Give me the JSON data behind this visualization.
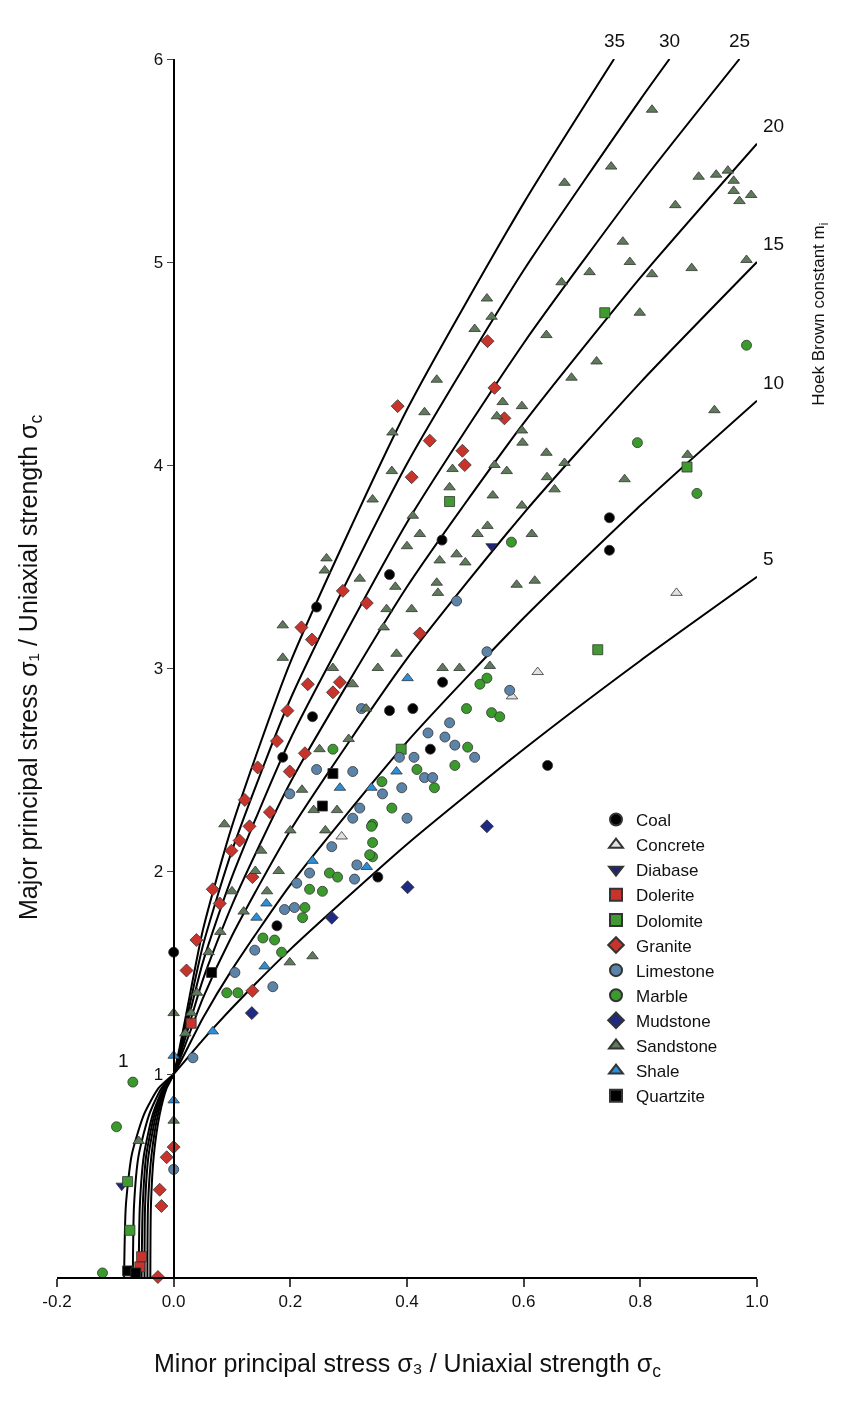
{
  "chart_data": {
    "type": "scatter",
    "xlabel": "Minor principal stress σ₃ / Uniaxial strength σ$_{c}$",
    "ylabel": "Major principal stress σ₁ / Uniaxial strength σ$_{c}$",
    "xlim": [
      -0.2,
      1.0
    ],
    "xticks": [
      -0.2,
      {
        "value": 0,
        "label": "0.0"
      },
      0.2,
      0.4,
      0.6,
      0.8,
      {
        "value": 1.0,
        "label": "1.0"
      }
    ],
    "ylim": [
      0,
      6
    ],
    "yticks": [
      1,
      2,
      3,
      4,
      5,
      6
    ],
    "legend": "bottom right",
    "annotations": [
      {
        "text": "5",
        "x": 1.0,
        "y": 3.449
      },
      {
        "text": "10",
        "x": 1.0,
        "y": 4.317
      },
      {
        "text": "15",
        "x": 1.0,
        "y": 5.0
      },
      {
        "text": "20",
        "x": 1.0,
        "y": 5.583
      },
      {
        "text": "25",
        "x": 0.97,
        "y": 6.0
      },
      {
        "text": "30",
        "x": 0.85,
        "y": 6.0
      },
      {
        "text": "35",
        "x": 0.755,
        "y": 6.0
      },
      "1",
      "Hoek Brown constant m$_{i}$"
    ],
    "series": [
      {
        "type": "line",
        "color": "#000000",
        "marker": "none",
        "x": [
          -0.085,
          -0.082,
          -0.072,
          -0.051,
          -0.026,
          0,
          0.05,
          0.1,
          0.2,
          0.4,
          0.6,
          0.8,
          1.0
        ],
        "values": [
          0,
          0.35,
          0.6,
          0.8,
          0.93,
          1,
          1.168,
          1.325,
          1.614,
          2.132,
          2.6,
          3.036,
          3.449
        ]
      },
      {
        "type": "line",
        "color": "#000000",
        "marker": "none",
        "x": [
          -0.07,
          -0.068,
          -0.06,
          -0.042,
          -0.021,
          0,
          0.05,
          0.1,
          0.2,
          0.4,
          0.6,
          0.8,
          1.0
        ],
        "values": [
          0,
          0.35,
          0.6,
          0.8,
          0.93,
          1,
          1.275,
          1.514,
          1.932,
          2.636,
          3.246,
          3.8,
          4.317
        ]
      },
      {
        "type": "line",
        "color": "#000000",
        "marker": "none",
        "x": [
          -0.06,
          -0.058,
          -0.051,
          -0.036,
          -0.018,
          0,
          0.05,
          0.1,
          0.2,
          0.4,
          0.6,
          0.8,
          1.0
        ],
        "values": [
          0,
          0.35,
          0.6,
          0.8,
          0.93,
          1,
          1.373,
          1.681,
          2.2,
          3.046,
          3.762,
          4.406,
          5.0
        ]
      },
      {
        "type": "line",
        "color": "#000000",
        "marker": "none",
        "x": [
          -0.055,
          -0.053,
          -0.047,
          -0.033,
          -0.017,
          0,
          0.05,
          0.1,
          0.2,
          0.4,
          0.6,
          0.8,
          1.0
        ],
        "values": [
          0,
          0.35,
          0.6,
          0.8,
          0.93,
          1,
          1.464,
          1.832,
          2.436,
          3.4,
          4.206,
          4.923,
          5.583
        ]
      },
      {
        "type": "line",
        "color": "#000000",
        "marker": "none",
        "x": [
          -0.05,
          -0.049,
          -0.043,
          -0.03,
          -0.015,
          0,
          0.05,
          0.1,
          0.2,
          0.4,
          0.6,
          0.8,
          0.97
        ],
        "values": [
          0,
          0.35,
          0.6,
          0.8,
          0.93,
          1,
          1.55,
          1.971,
          2.649,
          3.717,
          4.6,
          5.383,
          6.0
        ]
      },
      {
        "type": "line",
        "color": "#000000",
        "marker": "none",
        "x": [
          -0.045,
          -0.044,
          -0.038,
          -0.027,
          -0.014,
          0,
          0.05,
          0.1,
          0.2,
          0.4,
          0.6,
          0.8,
          0.85
        ],
        "values": [
          0,
          0.35,
          0.6,
          0.8,
          0.93,
          1,
          1.631,
          2.1,
          2.846,
          4.006,
          4.959,
          5.8,
          6.0
        ]
      },
      {
        "type": "line",
        "color": "#000000",
        "marker": "none",
        "x": [
          -0.04,
          -0.039,
          -0.034,
          -0.024,
          -0.012,
          0,
          0.05,
          0.1,
          0.2,
          0.4,
          0.6,
          0.755
        ],
        "values": [
          0,
          0.35,
          0.6,
          0.8,
          0.93,
          1,
          1.708,
          2.221,
          3.028,
          4.273,
          5.29,
          6.0
        ]
      },
      {
        "name": "Coal",
        "color": "#000000",
        "marker": "circle",
        "x": [
          0.641,
          0.35,
          0.747,
          0.747,
          0.46,
          0.37,
          0.461,
          0.245,
          0.187,
          0.177,
          0.0,
          0.238,
          0.41,
          0.44,
          0.37
        ],
        "values": [
          2.52,
          1.97,
          3.74,
          3.58,
          3.63,
          3.46,
          2.93,
          3.3,
          2.56,
          1.73,
          1.6,
          2.76,
          2.8,
          2.6,
          2.79
        ]
      },
      {
        "name": "Concrete",
        "color": "#e0e0e0",
        "marker": "triangle",
        "x": [
          0.862,
          0.624,
          0.288,
          0.58
        ],
        "values": [
          3.37,
          2.98,
          2.17,
          2.86
        ]
      },
      {
        "name": "Diabase",
        "color": "#1f237a",
        "marker": "triangle-down",
        "x": [
          0.545,
          -0.089
        ],
        "values": [
          3.6,
          0.45
        ]
      },
      {
        "name": "Dolerite",
        "color": "#c8342c",
        "marker": "square",
        "x": [
          -0.058,
          -0.055,
          0.03
        ],
        "values": [
          0.05,
          0.1,
          1.25
        ]
      },
      {
        "name": "Dolomite",
        "color": "#3f9a2f",
        "marker": "square",
        "x": [
          0.727,
          0.739,
          0.88,
          0.473,
          -0.079,
          -0.075,
          0.39
        ],
        "values": [
          3.09,
          4.75,
          3.99,
          3.82,
          0.47,
          0.23,
          2.6
        ]
      },
      {
        "name": "Granite",
        "color": "#c8342c",
        "marker": "diamond",
        "x": [
          0.384,
          0.538,
          0.55,
          0.439,
          0.495,
          0.499,
          0.408,
          0.567,
          0.422,
          0.29,
          0.331,
          0.219,
          0.237,
          0.23,
          0.273,
          0.285,
          0.195,
          0.177,
          0.225,
          0.144,
          0.199,
          0.122,
          0.165,
          0.13,
          0.099,
          0.113,
          0.135,
          0.067,
          0.079,
          0.039,
          0.022,
          0.135,
          0.0,
          -0.024,
          -0.021,
          -0.027,
          -0.012
        ],
        "values": [
          4.29,
          4.61,
          4.38,
          4.12,
          4.07,
          4.0,
          3.94,
          4.23,
          3.17,
          3.38,
          3.32,
          3.2,
          3.14,
          2.92,
          2.88,
          2.93,
          2.79,
          2.64,
          2.58,
          2.51,
          2.49,
          2.35,
          2.29,
          2.22,
          2.1,
          2.15,
          1.97,
          1.91,
          1.84,
          1.66,
          1.51,
          1.41,
          0.64,
          0.43,
          0.35,
          0.0,
          0.59
        ]
      },
      {
        "name": "Limestone",
        "color": "#5b84a8",
        "marker": "circle",
        "x": [
          0.473,
          0.436,
          0.465,
          0.482,
          0.516,
          0.387,
          0.412,
          0.43,
          0.444,
          0.391,
          0.358,
          0.4,
          0.576,
          0.245,
          0.307,
          0.322,
          0.199,
          0.319,
          0.307,
          0.271,
          0.233,
          0.211,
          0.314,
          0.31,
          0.207,
          0.19,
          0.139,
          0.105,
          0.17,
          0.485,
          0.537,
          0.0,
          0.033
        ],
        "values": [
          2.73,
          2.68,
          2.66,
          2.62,
          2.56,
          2.56,
          2.56,
          2.46,
          2.46,
          2.41,
          2.38,
          2.26,
          2.89,
          2.5,
          2.49,
          2.8,
          2.38,
          2.31,
          2.26,
          2.12,
          1.99,
          1.94,
          2.03,
          1.96,
          1.82,
          1.81,
          1.61,
          1.5,
          1.43,
          3.33,
          3.08,
          0.53,
          1.08
        ]
      },
      {
        "name": "Marble",
        "color": "#3a9a2c",
        "marker": "circle",
        "x": [
          0.982,
          0.795,
          0.897,
          0.579,
          0.537,
          0.525,
          0.502,
          0.545,
          0.559,
          0.504,
          0.482,
          0.417,
          0.447,
          0.374,
          0.341,
          0.341,
          0.341,
          0.273,
          0.357,
          0.339,
          0.336,
          0.267,
          0.281,
          0.233,
          0.255,
          0.225,
          0.221,
          0.153,
          0.173,
          0.185,
          0.091,
          0.11,
          -0.07,
          -0.098,
          -0.122
        ],
        "values": [
          4.59,
          4.11,
          3.86,
          3.62,
          2.95,
          2.92,
          2.8,
          2.78,
          2.76,
          2.61,
          2.52,
          2.5,
          2.41,
          2.31,
          2.23,
          2.14,
          2.07,
          2.6,
          2.44,
          2.22,
          2.08,
          1.99,
          1.97,
          1.91,
          1.9,
          1.82,
          1.77,
          1.67,
          1.66,
          1.6,
          1.4,
          1.4,
          0.96,
          0.74,
          0.02
        ]
      },
      {
        "name": "Mudstone",
        "color": "#1f2a80",
        "marker": "diamond",
        "x": [
          0.537,
          0.401,
          0.271,
          0.134
        ],
        "values": [
          2.22,
          1.92,
          1.77,
          1.3
        ]
      },
      {
        "name": "Sandstone",
        "color": "#5e7a5a",
        "marker": "triangle",
        "x": [
          0.982,
          0.782,
          0.713,
          0.82,
          0.888,
          0.665,
          0.537,
          0.545,
          0.516,
          0.639,
          0.799,
          0.451,
          0.725,
          0.682,
          0.43,
          0.375,
          0.564,
          0.597,
          0.554,
          0.597,
          0.598,
          0.927,
          0.374,
          0.478,
          0.55,
          0.571,
          0.639,
          0.67,
          0.64,
          0.653,
          0.773,
          0.881,
          0.473,
          0.547,
          0.597,
          0.422,
          0.538,
          0.521,
          0.614,
          0.456,
          0.485,
          0.5,
          0.451,
          0.453,
          0.588,
          0.619,
          0.408,
          0.542,
          0.461,
          0.49,
          0.382,
          0.365,
          0.187,
          0.187,
          0.319,
          0.273,
          0.307,
          0.087,
          0.238,
          0.199,
          0.262,
          0.341,
          0.259,
          0.93,
          0.95,
          0.96,
          0.96,
          0.97,
          0.99,
          0.9,
          0.86,
          0.75,
          0.67,
          0.77,
          0.82,
          0.1,
          0.15,
          0.2,
          0.12,
          0.18,
          0.22,
          0.25,
          0.3,
          0.28,
          0.06,
          0.08,
          0.04,
          0.03,
          0.02,
          0.14,
          0.24,
          0.26,
          0.16,
          0.35,
          0.33,
          0.36,
          0.38,
          0.4,
          0.41,
          0.0,
          0.0,
          -0.06
        ],
        "values": [
          5.01,
          5.0,
          4.95,
          4.94,
          4.97,
          4.9,
          4.82,
          4.73,
          4.67,
          4.64,
          4.75,
          4.42,
          4.51,
          4.43,
          4.26,
          4.16,
          4.31,
          4.29,
          4.24,
          4.17,
          4.11,
          4.27,
          3.97,
          3.98,
          4.0,
          3.97,
          4.06,
          4.01,
          3.94,
          3.88,
          3.93,
          4.05,
          3.89,
          3.85,
          3.8,
          3.66,
          3.7,
          3.66,
          3.66,
          3.53,
          3.56,
          3.52,
          3.42,
          3.37,
          3.41,
          3.43,
          3.29,
          3.01,
          3.0,
          3.0,
          3.07,
          3.29,
          3.21,
          3.05,
          3.44,
          3.0,
          2.92,
          2.23,
          1.58,
          1.55,
          3.54,
          3.83,
          3.48,
          5.43,
          5.45,
          5.4,
          5.35,
          5.3,
          5.33,
          5.42,
          5.28,
          5.47,
          5.39,
          5.1,
          5.75,
          1.9,
          2.1,
          2.2,
          1.8,
          2.0,
          2.4,
          2.6,
          2.65,
          2.3,
          1.6,
          1.7,
          1.4,
          1.3,
          1.2,
          2.0,
          2.3,
          2.2,
          1.9,
          3.0,
          2.8,
          3.2,
          3.4,
          3.6,
          3.75,
          1.3,
          0.77,
          0.67
        ]
      },
      {
        "name": "Shale",
        "color": "#2a8fd8",
        "marker": "triangle",
        "x": [
          0.285,
          0.339,
          0.238,
          0.331,
          0.159,
          0.142,
          0.156,
          0.401,
          0.382,
          0.0,
          0.0,
          0.067
        ],
        "values": [
          2.41,
          2.41,
          2.05,
          2.02,
          1.84,
          1.77,
          1.53,
          2.95,
          2.49,
          1.09,
          0.87,
          1.21
        ]
      },
      {
        "name": "Quartzite",
        "color": "#000000",
        "marker": "square",
        "x": [
          0.255,
          0.273,
          0.065,
          -0.079,
          -0.065
        ],
        "values": [
          2.32,
          2.48,
          1.5,
          0.03,
          0.02
        ]
      }
    ]
  }
}
